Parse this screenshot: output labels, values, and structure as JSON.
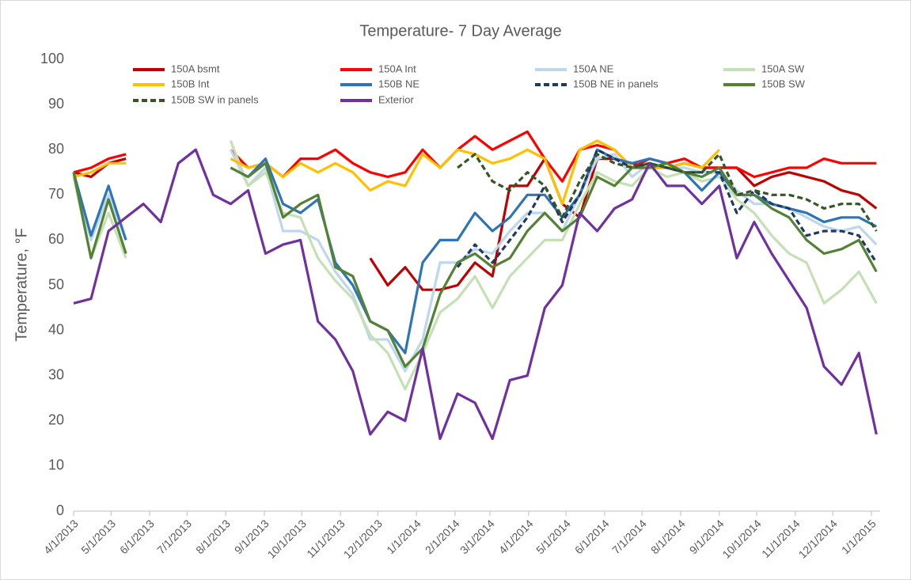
{
  "chart_data": {
    "type": "line",
    "title": "Temperature- 7 Day Average",
    "ylabel": "Temperature, °F",
    "x": [
      "4/1/2013",
      "4/15/2013",
      "4/29/2013",
      "5/13/2013",
      "5/27/2013",
      "6/10/2013",
      "6/24/2013",
      "7/8/2013",
      "7/22/2013",
      "8/5/2013",
      "8/19/2013",
      "9/2/2013",
      "9/16/2013",
      "9/30/2013",
      "10/14/2013",
      "10/28/2013",
      "11/11/2013",
      "11/25/2013",
      "12/9/2013",
      "12/23/2013",
      "1/6/2014",
      "1/20/2014",
      "2/3/2014",
      "2/17/2014",
      "3/3/2014",
      "3/17/2014",
      "3/31/2014",
      "4/14/2014",
      "4/28/2014",
      "5/12/2014",
      "5/26/2014",
      "6/9/2014",
      "6/23/2014",
      "7/7/2014",
      "7/21/2014",
      "8/4/2014",
      "8/18/2014",
      "9/1/2014",
      "9/15/2014",
      "9/29/2014",
      "10/13/2014",
      "10/27/2014",
      "11/10/2014",
      "11/24/2014",
      "12/8/2014",
      "12/22/2014",
      "1/5/2015"
    ],
    "series": [
      {
        "name": "150A bsmt",
        "color": "#c00000",
        "dash": false,
        "values": [
          75,
          74,
          77,
          78,
          null,
          null,
          null,
          null,
          null,
          null,
          null,
          null,
          null,
          null,
          null,
          null,
          null,
          56,
          50,
          54,
          49,
          49,
          50,
          55,
          52,
          72,
          72,
          78,
          68,
          65,
          78,
          78,
          77,
          76,
          76,
          77,
          76,
          76,
          76,
          72,
          74,
          75,
          74,
          73,
          71,
          70,
          67
        ]
      },
      {
        "name": "150A Int",
        "color": "#ff0000",
        "dash": false,
        "values": [
          75,
          76,
          78,
          79,
          null,
          null,
          null,
          null,
          null,
          80,
          76,
          77,
          74,
          78,
          78,
          80,
          77,
          75,
          74,
          75,
          80,
          76,
          80,
          83,
          80,
          82,
          84,
          78,
          73,
          80,
          81,
          80,
          76,
          78,
          77,
          78,
          76,
          76,
          76,
          74,
          75,
          76,
          76,
          78,
          77,
          77,
          77
        ]
      },
      {
        "name": "150A NE",
        "color": "#bdd7ee",
        "dash": false,
        "values": [
          74,
          60,
          70,
          60,
          null,
          null,
          null,
          null,
          null,
          80,
          72,
          76,
          62,
          62,
          60,
          53,
          48,
          38,
          38,
          31,
          38,
          55,
          55,
          58,
          57,
          62,
          66,
          66,
          62,
          70,
          78,
          79,
          74,
          77,
          76,
          76,
          75,
          75,
          71,
          68,
          68,
          67,
          65,
          63,
          62,
          63,
          59
        ]
      },
      {
        "name": "150A SW",
        "color": "#c5e0b4",
        "dash": false,
        "values": [
          74,
          56,
          66,
          56,
          null,
          null,
          null,
          null,
          null,
          82,
          72,
          75,
          66,
          65,
          56,
          51,
          47,
          39,
          35,
          27,
          35,
          44,
          47,
          52,
          45,
          52,
          56,
          60,
          60,
          68,
          75,
          73,
          72,
          76,
          74,
          75,
          73,
          74,
          69,
          66,
          61,
          57,
          55,
          46,
          49,
          53,
          46
        ]
      },
      {
        "name": "150B Int",
        "color": "#ffc000",
        "dash": false,
        "values": [
          74,
          75,
          77,
          77,
          null,
          null,
          null,
          null,
          null,
          78,
          76,
          77,
          74,
          77,
          75,
          77,
          75,
          71,
          73,
          72,
          79,
          76,
          80,
          79,
          77,
          78,
          80,
          78,
          68,
          80,
          82,
          80,
          76,
          76,
          76,
          77,
          76,
          80,
          null,
          null,
          null,
          null,
          null,
          null,
          null,
          null,
          null
        ]
      },
      {
        "name": "150B NE",
        "color": "#2e75b6",
        "dash": false,
        "values": [
          75,
          61,
          72,
          60,
          null,
          null,
          null,
          null,
          null,
          76,
          74,
          78,
          68,
          66,
          69,
          55,
          50,
          42,
          40,
          35,
          55,
          60,
          60,
          66,
          62,
          65,
          70,
          70,
          65,
          70,
          80,
          78,
          77,
          78,
          77,
          75,
          71,
          75,
          70,
          70,
          68,
          67,
          66,
          64,
          65,
          65,
          63
        ]
      },
      {
        "name": "150B NE in panels",
        "color": "#1f3864",
        "dash": true,
        "values": [
          null,
          null,
          null,
          null,
          null,
          null,
          null,
          null,
          null,
          null,
          null,
          null,
          null,
          null,
          null,
          null,
          null,
          null,
          null,
          null,
          null,
          null,
          54,
          59,
          55,
          60,
          65,
          72,
          64,
          70,
          80,
          78,
          76,
          77,
          76,
          75,
          75,
          75,
          66,
          71,
          68,
          67,
          61,
          62,
          62,
          61,
          55
        ]
      },
      {
        "name": "150B SW",
        "color": "#548235",
        "dash": false,
        "values": [
          75,
          56,
          69,
          57,
          null,
          null,
          null,
          null,
          null,
          76,
          74,
          77,
          65,
          68,
          70,
          54,
          52,
          42,
          40,
          32,
          36,
          48,
          55,
          57,
          54,
          56,
          62,
          66,
          62,
          65,
          74,
          72,
          76,
          76,
          77,
          75,
          74,
          76,
          70,
          70,
          67,
          65,
          60,
          57,
          58,
          60,
          53
        ]
      },
      {
        "name": "150B SW in panels",
        "color": "#375623",
        "dash": true,
        "values": [
          null,
          null,
          null,
          null,
          null,
          null,
          null,
          null,
          null,
          null,
          null,
          null,
          null,
          null,
          null,
          null,
          null,
          null,
          null,
          null,
          null,
          null,
          76,
          79,
          73,
          71,
          75,
          72,
          65,
          73,
          79,
          77,
          76,
          77,
          76,
          75,
          75,
          79,
          70,
          71,
          70,
          70,
          69,
          67,
          68,
          68,
          62
        ]
      },
      {
        "name": "Exterior",
        "color": "#7030a0",
        "dash": false,
        "values": [
          46,
          47,
          62,
          65,
          68,
          64,
          77,
          80,
          70,
          68,
          71,
          57,
          59,
          60,
          42,
          38,
          31,
          17,
          22,
          20,
          36,
          16,
          26,
          24,
          16,
          29,
          30,
          45,
          50,
          66,
          62,
          67,
          69,
          77,
          72,
          72,
          68,
          72,
          56,
          64,
          57,
          51,
          45,
          32,
          28,
          35,
          17
        ]
      }
    ],
    "xlim": [
      "4/1/2013",
      "1/8/2015"
    ],
    "xticks": [
      "4/1/2013",
      "5/1/2013",
      "6/1/2013",
      "7/1/2013",
      "8/1/2013",
      "9/1/2013",
      "10/1/2013",
      "11/1/2013",
      "12/1/2013",
      "1/1/2014",
      "2/1/2014",
      "3/1/2014",
      "4/1/2014",
      "5/1/2014",
      "6/1/2014",
      "7/1/2014",
      "8/1/2014",
      "9/1/2014",
      "10/1/2014",
      "11/1/2014",
      "12/1/2014",
      "1/1/2015"
    ],
    "ylim": [
      0,
      100
    ],
    "yticks": [
      0,
      10,
      20,
      30,
      40,
      50,
      60,
      70,
      80,
      90,
      100
    ],
    "grid": false,
    "legend": "top"
  }
}
